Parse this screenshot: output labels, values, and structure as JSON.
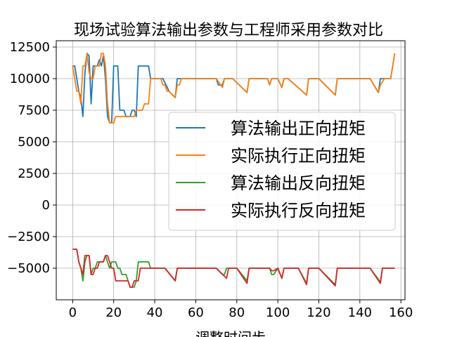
{
  "chart_data": {
    "type": "line",
    "title": "现场试验算法输出参数与工程师采用参数对比",
    "xlabel": "调整时间步",
    "ylabel": "",
    "xlim": [
      -8,
      162
    ],
    "ylim": [
      -7500,
      13000
    ],
    "xticks": [
      0,
      20,
      40,
      60,
      80,
      100,
      120,
      140,
      160
    ],
    "yticks": [
      -5000,
      -2500,
      0,
      2500,
      5000,
      7500,
      10000,
      12500
    ],
    "grid": true,
    "legend_position": "center-right",
    "series": [
      {
        "name": "算法输出正向扭矩",
        "color": "#1f77b4",
        "points": [
          [
            0,
            11000
          ],
          [
            1,
            11000
          ],
          [
            2,
            10000
          ],
          [
            3,
            9000
          ],
          [
            4,
            8500
          ],
          [
            5,
            7000
          ],
          [
            6,
            10500
          ],
          [
            7,
            12000
          ],
          [
            8,
            11800
          ],
          [
            9,
            8000
          ],
          [
            10,
            11000
          ],
          [
            11,
            11000
          ],
          [
            12,
            11000
          ],
          [
            13,
            11500
          ],
          [
            14,
            11000
          ],
          [
            15,
            11800
          ],
          [
            16,
            10000
          ],
          [
            17,
            7000
          ],
          [
            18,
            6500
          ],
          [
            19,
            6500
          ],
          [
            20,
            11000
          ],
          [
            21,
            11000
          ],
          [
            22,
            11000
          ],
          [
            23,
            7500
          ],
          [
            24,
            7500
          ],
          [
            25,
            7500
          ],
          [
            26,
            7000
          ],
          [
            27,
            7000
          ],
          [
            28,
            7000
          ],
          [
            29,
            7500
          ],
          [
            30,
            7500
          ],
          [
            31,
            7000
          ],
          [
            32,
            11000
          ],
          [
            33,
            11000
          ],
          [
            34,
            11000
          ],
          [
            35,
            11000
          ],
          [
            36,
            11000
          ],
          [
            37,
            11000
          ],
          [
            38,
            10000
          ],
          [
            39,
            10000
          ],
          [
            40,
            10000
          ],
          [
            41,
            10000
          ],
          [
            42,
            10000
          ],
          [
            43,
            10000
          ],
          [
            44,
            10000
          ],
          [
            47,
            9000
          ],
          [
            50,
            8500
          ],
          [
            51,
            10000
          ],
          [
            52,
            10000
          ],
          [
            55,
            10000
          ],
          [
            60,
            10000
          ],
          [
            65,
            10000
          ],
          [
            70,
            10000
          ],
          [
            71,
            9500
          ],
          [
            73,
            9500
          ],
          [
            74,
            10000
          ],
          [
            75,
            10000
          ],
          [
            78,
            10000
          ],
          [
            85,
            8900
          ],
          [
            86,
            10000
          ],
          [
            90,
            10000
          ],
          [
            95,
            10000
          ],
          [
            96,
            9500
          ],
          [
            97,
            10000
          ],
          [
            100,
            10000
          ],
          [
            102,
            9300
          ],
          [
            103,
            10000
          ],
          [
            105,
            10000
          ],
          [
            114,
            8700
          ],
          [
            115,
            10000
          ],
          [
            120,
            10000
          ],
          [
            128,
            8700
          ],
          [
            129,
            10000
          ],
          [
            135,
            10000
          ],
          [
            140,
            10000
          ],
          [
            145,
            10000
          ],
          [
            149,
            8900
          ],
          [
            150,
            10000
          ],
          [
            152,
            10000
          ],
          [
            155,
            10000
          ],
          [
            157,
            12000
          ]
        ]
      },
      {
        "name": "实际执行正向扭矩",
        "color": "#ff7f0e",
        "points": [
          [
            0,
            11000
          ],
          [
            1,
            10000
          ],
          [
            2,
            9000
          ],
          [
            3,
            9000
          ],
          [
            4,
            8000
          ],
          [
            5,
            11000
          ],
          [
            6,
            11000
          ],
          [
            7,
            12000
          ],
          [
            8,
            10500
          ],
          [
            9,
            10000
          ],
          [
            10,
            10000
          ],
          [
            11,
            11000
          ],
          [
            12,
            11000
          ],
          [
            13,
            11000
          ],
          [
            14,
            12000
          ],
          [
            15,
            12000
          ],
          [
            16,
            11000
          ],
          [
            17,
            8000
          ],
          [
            18,
            6500
          ],
          [
            19,
            6500
          ],
          [
            20,
            6500
          ],
          [
            21,
            7000
          ],
          [
            22,
            7000
          ],
          [
            23,
            7000
          ],
          [
            24,
            7000
          ],
          [
            25,
            7000
          ],
          [
            26,
            7000
          ],
          [
            27,
            7000
          ],
          [
            28,
            7000
          ],
          [
            29,
            7000
          ],
          [
            30,
            7000
          ],
          [
            31,
            7500
          ],
          [
            32,
            7500
          ],
          [
            33,
            7500
          ],
          [
            34,
            7500
          ],
          [
            35,
            8000
          ],
          [
            36,
            8000
          ],
          [
            37,
            8000
          ],
          [
            38,
            10000
          ],
          [
            39,
            10000
          ],
          [
            40,
            10000
          ],
          [
            41,
            10000
          ],
          [
            42,
            10000
          ],
          [
            43,
            10000
          ],
          [
            44,
            9500
          ],
          [
            45,
            9500
          ],
          [
            46,
            9000
          ],
          [
            47,
            9000
          ],
          [
            50,
            8500
          ],
          [
            51,
            9500
          ],
          [
            52,
            9500
          ],
          [
            53,
            10000
          ],
          [
            60,
            10000
          ],
          [
            65,
            10000
          ],
          [
            70,
            10000
          ],
          [
            73,
            9300
          ],
          [
            74,
            10000
          ],
          [
            75,
            10000
          ],
          [
            78,
            10000
          ],
          [
            85,
            8900
          ],
          [
            86,
            10000
          ],
          [
            90,
            10000
          ],
          [
            95,
            10000
          ],
          [
            96,
            9500
          ],
          [
            97,
            10000
          ],
          [
            100,
            10000
          ],
          [
            102,
            9300
          ],
          [
            103,
            10000
          ],
          [
            105,
            10000
          ],
          [
            114,
            8700
          ],
          [
            115,
            10000
          ],
          [
            120,
            10000
          ],
          [
            128,
            8700
          ],
          [
            129,
            10000
          ],
          [
            135,
            10000
          ],
          [
            140,
            10000
          ],
          [
            145,
            10000
          ],
          [
            149,
            8900
          ],
          [
            150,
            9500
          ],
          [
            152,
            10000
          ],
          [
            155,
            10000
          ],
          [
            157,
            12000
          ]
        ]
      },
      {
        "name": "算法输出反向扭矩",
        "color": "#2ca02c",
        "points": [
          [
            0,
            -3500
          ],
          [
            1,
            -3500
          ],
          [
            2,
            -3500
          ],
          [
            3,
            -4500
          ],
          [
            4,
            -5000
          ],
          [
            5,
            -6000
          ],
          [
            6,
            -4500
          ],
          [
            7,
            -4000
          ],
          [
            8,
            -4000
          ],
          [
            9,
            -5500
          ],
          [
            10,
            -5000
          ],
          [
            11,
            -5000
          ],
          [
            12,
            -4500
          ],
          [
            13,
            -4500
          ],
          [
            14,
            -4500
          ],
          [
            15,
            -4500
          ],
          [
            16,
            -4000
          ],
          [
            17,
            -4500
          ],
          [
            18,
            -5000
          ],
          [
            19,
            -4500
          ],
          [
            20,
            -4500
          ],
          [
            21,
            -4500
          ],
          [
            22,
            -5000
          ],
          [
            23,
            -5000
          ],
          [
            24,
            -5500
          ],
          [
            25,
            -5500
          ],
          [
            26,
            -5500
          ],
          [
            27,
            -6000
          ],
          [
            28,
            -6500
          ],
          [
            29,
            -6500
          ],
          [
            30,
            -6500
          ],
          [
            31,
            -6000
          ],
          [
            32,
            -4500
          ],
          [
            33,
            -4500
          ],
          [
            34,
            -4500
          ],
          [
            35,
            -4500
          ],
          [
            36,
            -4500
          ],
          [
            37,
            -4500
          ],
          [
            38,
            -5000
          ],
          [
            40,
            -5000
          ],
          [
            45,
            -5000
          ],
          [
            50,
            -6000
          ],
          [
            51,
            -5000
          ],
          [
            55,
            -5000
          ],
          [
            60,
            -5000
          ],
          [
            65,
            -5000
          ],
          [
            70,
            -5000
          ],
          [
            73,
            -5500
          ],
          [
            74,
            -5500
          ],
          [
            75,
            -5000
          ],
          [
            80,
            -5000
          ],
          [
            85,
            -6000
          ],
          [
            86,
            -5000
          ],
          [
            90,
            -5000
          ],
          [
            95,
            -5000
          ],
          [
            96,
            -5000
          ],
          [
            97,
            -5500
          ],
          [
            98,
            -5500
          ],
          [
            100,
            -5000
          ],
          [
            102,
            -5800
          ],
          [
            103,
            -5000
          ],
          [
            105,
            -5000
          ],
          [
            110,
            -5000
          ],
          [
            114,
            -6200
          ],
          [
            115,
            -5000
          ],
          [
            120,
            -5000
          ],
          [
            128,
            -6300
          ],
          [
            129,
            -5000
          ],
          [
            135,
            -5000
          ],
          [
            140,
            -5000
          ],
          [
            145,
            -5000
          ],
          [
            150,
            -6100
          ],
          [
            151,
            -5000
          ],
          [
            155,
            -5000
          ],
          [
            157,
            -5000
          ]
        ]
      },
      {
        "name": "实际执行反向扭矩",
        "color": "#d62728",
        "points": [
          [
            0,
            -3500
          ],
          [
            1,
            -3500
          ],
          [
            2,
            -3500
          ],
          [
            3,
            -4500
          ],
          [
            4,
            -5000
          ],
          [
            5,
            -5500
          ],
          [
            6,
            -4000
          ],
          [
            7,
            -4000
          ],
          [
            8,
            -4000
          ],
          [
            9,
            -5500
          ],
          [
            10,
            -5500
          ],
          [
            11,
            -5000
          ],
          [
            12,
            -5000
          ],
          [
            13,
            -4500
          ],
          [
            14,
            -4500
          ],
          [
            15,
            -4500
          ],
          [
            16,
            -4000
          ],
          [
            17,
            -4000
          ],
          [
            18,
            -4500
          ],
          [
            19,
            -5000
          ],
          [
            20,
            -5000
          ],
          [
            21,
            -6000
          ],
          [
            22,
            -6000
          ],
          [
            23,
            -6000
          ],
          [
            24,
            -6000
          ],
          [
            25,
            -6000
          ],
          [
            26,
            -6000
          ],
          [
            27,
            -6000
          ],
          [
            28,
            -6500
          ],
          [
            29,
            -6500
          ],
          [
            30,
            -6000
          ],
          [
            31,
            -6000
          ],
          [
            32,
            -6000
          ],
          [
            33,
            -5000
          ],
          [
            34,
            -5000
          ],
          [
            35,
            -5000
          ],
          [
            36,
            -5000
          ],
          [
            37,
            -5000
          ],
          [
            40,
            -5000
          ],
          [
            45,
            -5000
          ],
          [
            50,
            -6000
          ],
          [
            51,
            -5000
          ],
          [
            55,
            -5000
          ],
          [
            60,
            -5000
          ],
          [
            65,
            -5000
          ],
          [
            70,
            -5000
          ],
          [
            75,
            -5800
          ],
          [
            76,
            -5000
          ],
          [
            80,
            -5000
          ],
          [
            85,
            -6200
          ],
          [
            86,
            -5000
          ],
          [
            90,
            -5000
          ],
          [
            95,
            -5000
          ],
          [
            96,
            -5000
          ],
          [
            97,
            -5200
          ],
          [
            98,
            -5200
          ],
          [
            100,
            -5000
          ],
          [
            102,
            -5800
          ],
          [
            103,
            -5000
          ],
          [
            105,
            -5000
          ],
          [
            110,
            -5000
          ],
          [
            114,
            -6300
          ],
          [
            115,
            -5000
          ],
          [
            120,
            -5000
          ],
          [
            128,
            -6400
          ],
          [
            129,
            -5000
          ],
          [
            135,
            -5000
          ],
          [
            140,
            -5000
          ],
          [
            145,
            -5000
          ],
          [
            150,
            -6200
          ],
          [
            151,
            -5000
          ],
          [
            155,
            -5000
          ],
          [
            157,
            -5000
          ]
        ]
      }
    ]
  }
}
